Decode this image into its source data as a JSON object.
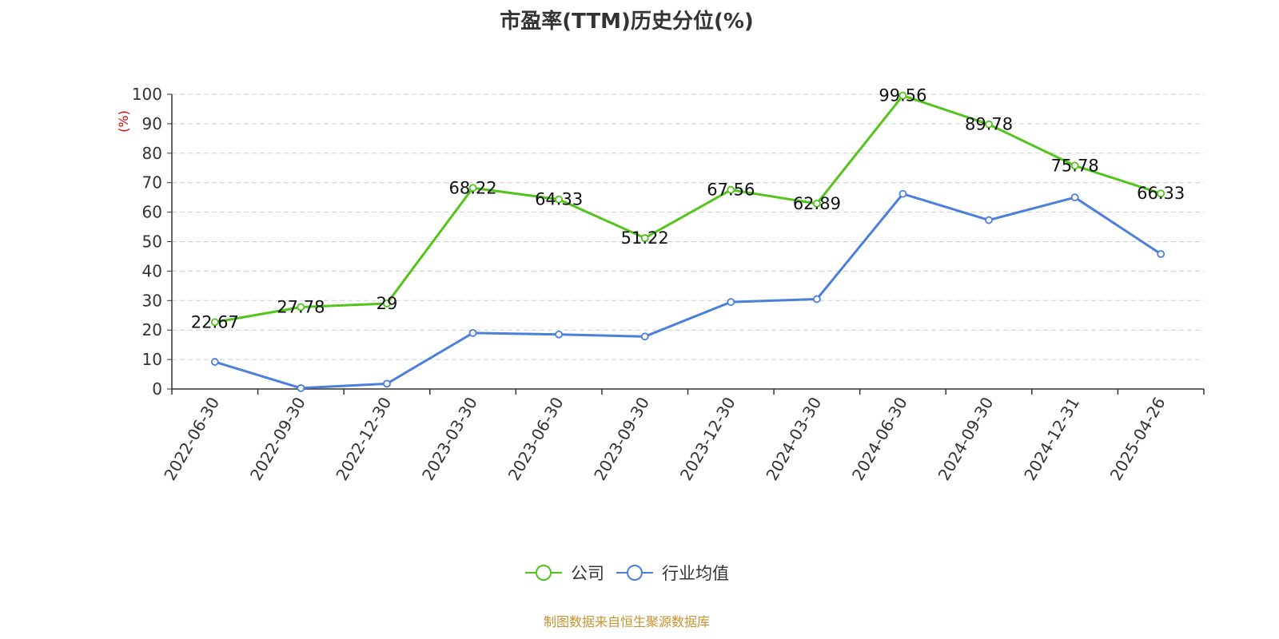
{
  "chart_data": {
    "type": "line",
    "title": "市盈率(TTM)历史分位(%)",
    "ylabel": "(%)",
    "ylim": [
      0,
      100
    ],
    "yticks": [
      0,
      10,
      20,
      30,
      40,
      50,
      60,
      70,
      80,
      90,
      100
    ],
    "categories": [
      "2022-06-30",
      "2022-09-30",
      "2022-12-30",
      "2023-03-30",
      "2023-06-30",
      "2023-09-30",
      "2023-12-30",
      "2024-03-30",
      "2024-06-30",
      "2024-09-30",
      "2024-12-31",
      "2025-04-26"
    ],
    "series": [
      {
        "name": "公司",
        "color": "#52c41a",
        "labeled": true,
        "values": [
          22.67,
          27.78,
          29,
          68.22,
          64.33,
          51.22,
          67.56,
          62.89,
          99.56,
          89.78,
          75.78,
          66.33
        ]
      },
      {
        "name": "行业均值",
        "color": "#4a7fdc",
        "labeled": false,
        "values": [
          9.2,
          0.3,
          1.8,
          19,
          18.5,
          17.8,
          29.5,
          30.5,
          66.2,
          57.3,
          65,
          45.8
        ]
      }
    ],
    "grid": true,
    "legend_position": "bottom"
  },
  "footer": {
    "source": "制图数据来自恒生聚源数据库"
  },
  "colors": {
    "axis": "#333333",
    "grid": "#cccccc",
    "ylabel": "#e00000",
    "source": "#c8932d"
  }
}
